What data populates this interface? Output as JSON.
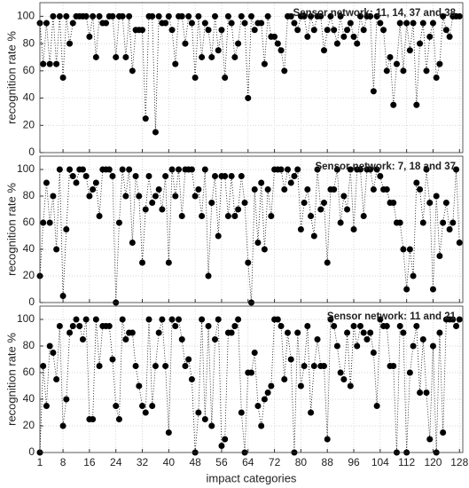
{
  "chart_data": [
    {
      "type": "line",
      "annotation": "Sensor network: 11, 14, 37 and 38",
      "ylabel": "recognition rate  %",
      "color": "#000000",
      "annotation_color": "#e8141c",
      "grid": true,
      "x": [
        1,
        2,
        3,
        4,
        5,
        6,
        7,
        8,
        9,
        10,
        11,
        12,
        13,
        14,
        15,
        16,
        17,
        18,
        19,
        20,
        21,
        22,
        23,
        24,
        25,
        26,
        27,
        28,
        29,
        30,
        31,
        32,
        33,
        34,
        35,
        36,
        37,
        38,
        39,
        40,
        41,
        42,
        43,
        44,
        45,
        46,
        47,
        48,
        49,
        50,
        51,
        52,
        53,
        54,
        55,
        56,
        57,
        58,
        59,
        60,
        61,
        62,
        63,
        64,
        65,
        66,
        67,
        68,
        69,
        70,
        71,
        72,
        73,
        74,
        75,
        76,
        77,
        78,
        79,
        80,
        81,
        82,
        83,
        84,
        85,
        86,
        87,
        88,
        89,
        90,
        91,
        92,
        93,
        94,
        95,
        96,
        97,
        98,
        99,
        100,
        101,
        102,
        103,
        104,
        105,
        106,
        107,
        108,
        109,
        110,
        111,
        112,
        113,
        114,
        115,
        116,
        117,
        118,
        119,
        120,
        121,
        122,
        123,
        124,
        125,
        126,
        127,
        128
      ],
      "values": [
        95,
        65,
        95,
        65,
        100,
        65,
        100,
        55,
        100,
        80,
        95,
        100,
        100,
        100,
        100,
        85,
        100,
        70,
        100,
        95,
        95,
        100,
        100,
        70,
        100,
        100,
        70,
        100,
        60,
        90,
        90,
        90,
        25,
        100,
        100,
        15,
        100,
        95,
        95,
        100,
        90,
        65,
        100,
        100,
        80,
        100,
        95,
        55,
        100,
        70,
        95,
        90,
        70,
        100,
        75,
        90,
        55,
        100,
        95,
        70,
        80,
        100,
        95,
        40,
        100,
        90,
        95,
        95,
        65,
        100,
        85,
        85,
        80,
        75,
        60,
        100,
        100,
        95,
        90,
        100,
        100,
        85,
        100,
        90,
        100,
        100,
        75,
        90,
        100,
        90,
        80,
        100,
        85,
        90,
        95,
        85,
        80,
        100,
        90,
        100,
        100,
        45,
        100,
        95,
        90,
        60,
        70,
        35,
        65,
        95,
        60,
        95,
        75,
        95,
        35,
        80,
        95,
        60,
        85,
        95,
        55,
        65,
        100,
        90,
        85,
        100,
        100,
        100
      ],
      "xlim": [
        1,
        129
      ],
      "ylim": [
        0,
        110
      ],
      "yticks": [
        0,
        20,
        40,
        60,
        80,
        100
      ],
      "xticks": [
        1,
        8,
        16,
        24,
        32,
        40,
        48,
        56,
        64,
        72,
        80,
        88,
        96,
        104,
        112,
        120,
        128
      ]
    },
    {
      "type": "line",
      "annotation": "Sensor network: 7, 18 and 37",
      "ylabel": "recognition rate  %",
      "color": "#000000",
      "annotation_color": "#e8141c",
      "grid": true,
      "x": [
        1,
        2,
        3,
        4,
        5,
        6,
        7,
        8,
        9,
        10,
        11,
        12,
        13,
        14,
        15,
        16,
        17,
        18,
        19,
        20,
        21,
        22,
        23,
        24,
        25,
        26,
        27,
        28,
        29,
        30,
        31,
        32,
        33,
        34,
        35,
        36,
        37,
        38,
        39,
        40,
        41,
        42,
        43,
        44,
        45,
        46,
        47,
        48,
        49,
        50,
        51,
        52,
        53,
        54,
        55,
        56,
        57,
        58,
        59,
        60,
        61,
        62,
        63,
        64,
        65,
        66,
        67,
        68,
        69,
        70,
        71,
        72,
        73,
        74,
        75,
        76,
        77,
        78,
        79,
        80,
        81,
        82,
        83,
        84,
        85,
        86,
        87,
        88,
        89,
        90,
        91,
        92,
        93,
        94,
        95,
        96,
        97,
        98,
        99,
        100,
        101,
        102,
        103,
        104,
        105,
        106,
        107,
        108,
        109,
        110,
        111,
        112,
        113,
        114,
        115,
        116,
        117,
        118,
        119,
        120,
        121,
        122,
        123,
        124,
        125,
        126,
        127,
        128
      ],
      "values": [
        20,
        60,
        90,
        60,
        80,
        40,
        100,
        5,
        55,
        100,
        95,
        90,
        100,
        100,
        95,
        80,
        85,
        90,
        65,
        100,
        100,
        100,
        95,
        0,
        60,
        100,
        80,
        100,
        45,
        95,
        80,
        30,
        70,
        95,
        75,
        80,
        85,
        70,
        95,
        30,
        100,
        80,
        100,
        65,
        100,
        100,
        100,
        80,
        85,
        65,
        100,
        20,
        75,
        95,
        50,
        95,
        95,
        65,
        95,
        65,
        70,
        95,
        75,
        30,
        0,
        85,
        45,
        90,
        40,
        85,
        65,
        100,
        100,
        100,
        85,
        100,
        90,
        95,
        100,
        55,
        75,
        85,
        65,
        50,
        100,
        70,
        75,
        30,
        85,
        85,
        100,
        60,
        80,
        70,
        100,
        55,
        100,
        100,
        65,
        100,
        100,
        85,
        100,
        95,
        85,
        85,
        75,
        75,
        60,
        60,
        40,
        10,
        40,
        20,
        90,
        85,
        60,
        100,
        75,
        10,
        80,
        35,
        60,
        75,
        55,
        60,
        100,
        45
      ],
      "xlim": [
        1,
        129
      ],
      "ylim": [
        0,
        110
      ],
      "yticks": [
        0,
        20,
        40,
        60,
        80,
        100
      ],
      "xticks": [
        1,
        8,
        16,
        24,
        32,
        40,
        48,
        56,
        64,
        72,
        80,
        88,
        96,
        104,
        112,
        120,
        128
      ]
    },
    {
      "type": "line",
      "annotation": "Sensor network: 11 and 21",
      "ylabel": "recognition rate  %",
      "xlabel": "impact categories",
      "color": "#000000",
      "annotation_color": "#e8141c",
      "grid": true,
      "x": [
        1,
        2,
        3,
        4,
        5,
        6,
        7,
        8,
        9,
        10,
        11,
        12,
        13,
        14,
        15,
        16,
        17,
        18,
        19,
        20,
        21,
        22,
        23,
        24,
        25,
        26,
        27,
        28,
        29,
        30,
        31,
        32,
        33,
        34,
        35,
        36,
        37,
        38,
        39,
        40,
        41,
        42,
        43,
        44,
        45,
        46,
        47,
        48,
        49,
        50,
        51,
        52,
        53,
        54,
        55,
        56,
        57,
        58,
        59,
        60,
        61,
        62,
        63,
        64,
        65,
        66,
        67,
        68,
        69,
        70,
        71,
        72,
        73,
        74,
        75,
        76,
        77,
        78,
        79,
        80,
        81,
        82,
        83,
        84,
        85,
        86,
        87,
        88,
        89,
        90,
        91,
        92,
        93,
        94,
        95,
        96,
        97,
        98,
        99,
        100,
        101,
        102,
        103,
        104,
        105,
        106,
        107,
        108,
        109,
        110,
        111,
        112,
        113,
        114,
        115,
        116,
        117,
        118,
        119,
        120,
        121,
        122,
        123,
        124,
        125,
        126,
        127,
        128
      ],
      "values": [
        0,
        65,
        35,
        80,
        75,
        55,
        95,
        20,
        40,
        90,
        95,
        100,
        95,
        85,
        100,
        25,
        25,
        100,
        65,
        95,
        95,
        95,
        70,
        35,
        25,
        100,
        85,
        90,
        90,
        65,
        50,
        35,
        30,
        100,
        35,
        65,
        90,
        100,
        65,
        15,
        100,
        95,
        100,
        85,
        65,
        70,
        55,
        0,
        30,
        100,
        25,
        95,
        20,
        85,
        100,
        5,
        10,
        90,
        90,
        95,
        100,
        30,
        0,
        60,
        60,
        75,
        35,
        20,
        40,
        45,
        50,
        100,
        100,
        95,
        55,
        90,
        70,
        0,
        90,
        50,
        65,
        95,
        30,
        65,
        85,
        65,
        65,
        10,
        100,
        95,
        80,
        60,
        55,
        90,
        50,
        95,
        80,
        95,
        90,
        85,
        90,
        75,
        35,
        100,
        95,
        95,
        65,
        65,
        0,
        95,
        90,
        0,
        60,
        80,
        95,
        45,
        85,
        45,
        10,
        80,
        0,
        90,
        15,
        100,
        100,
        100,
        95,
        100
      ],
      "xlim": [
        1,
        129
      ],
      "ylim": [
        0,
        110
      ],
      "yticks": [
        0,
        20,
        40,
        60,
        80,
        100
      ],
      "xticks": [
        1,
        8,
        16,
        24,
        32,
        40,
        48,
        56,
        64,
        72,
        80,
        88,
        96,
        104,
        112,
        120,
        128
      ]
    }
  ]
}
